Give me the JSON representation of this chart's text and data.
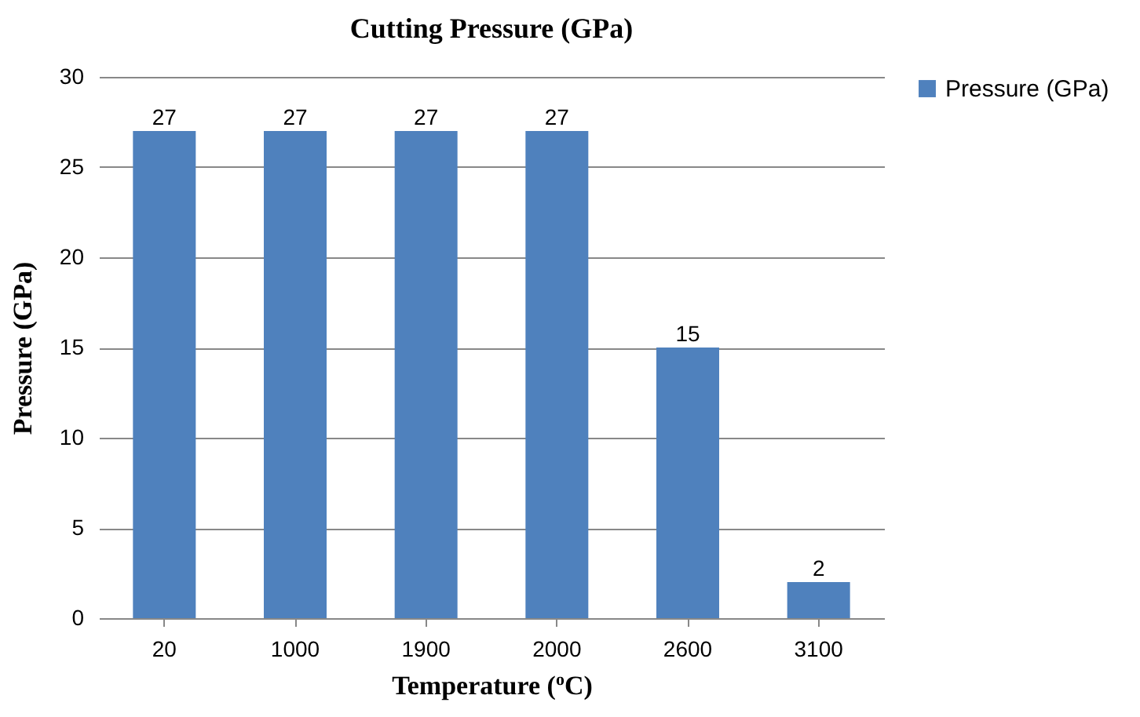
{
  "chart_data": {
    "type": "bar",
    "title": "Cutting Pressure (GPa)",
    "xlabel": "Temperature ($^{o}$C)",
    "ylabel": "Pressure (GPa)",
    "categories": [
      "20",
      "1000",
      "1900",
      "2000",
      "2600",
      "3100"
    ],
    "series": [
      {
        "name": "Pressure (GPa)",
        "color": "#4f81bd",
        "values": [
          27,
          27,
          27,
          27,
          15,
          2
        ]
      }
    ],
    "ylim": [
      0,
      30
    ],
    "yticks": [
      0,
      5,
      10,
      15,
      20,
      25,
      30
    ],
    "grid": "y",
    "legend": "right",
    "data_labels": true
  }
}
